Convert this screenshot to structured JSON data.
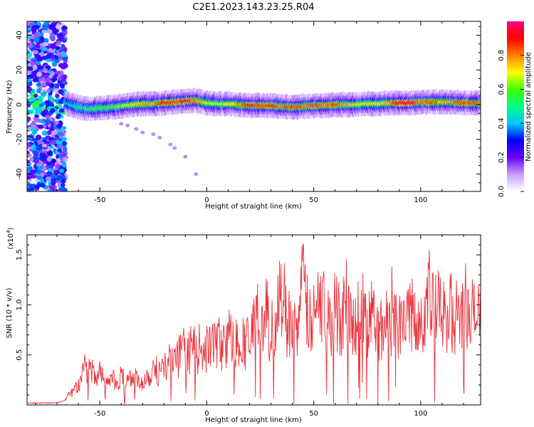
{
  "page": {
    "title": "C2E1.2023.143.23.25.R04"
  },
  "chart_data": [
    {
      "type": "heatmap",
      "xlabel": "Height of straight line (km)",
      "ylabel": "Frequency (Hz)",
      "xlim": [
        -84,
        128
      ],
      "ylim": [
        -50,
        48
      ],
      "x_ticks": [
        -50,
        0,
        50,
        100
      ],
      "y_ticks": [
        -40,
        -20,
        0,
        20,
        40
      ],
      "colorbar": {
        "label": "Normalized spectral amplitude",
        "range": [
          0.0,
          1.0
        ],
        "ticks": [
          0.0,
          0.2,
          0.4,
          0.6,
          0.8
        ],
        "colors": [
          "#ffffff",
          "#c8a0ff",
          "#6a00ff",
          "#0000ff",
          "#00c8ff",
          "#00ff80",
          "#40ff00",
          "#ffff00",
          "#ff8000",
          "#ff0000",
          "#ff0080"
        ]
      },
      "ridge": {
        "x": [
          -66,
          -60,
          -55,
          -50,
          -45,
          -40,
          -35,
          -30,
          -25,
          -20,
          -15,
          -10,
          -5,
          0,
          5,
          10,
          15,
          20,
          25,
          30,
          35,
          40,
          45,
          50,
          55,
          60,
          65,
          70,
          75,
          80,
          85,
          90,
          95,
          100,
          105,
          110,
          115,
          120,
          125,
          128
        ],
        "y": [
          1,
          -1.5,
          -2.5,
          -2,
          -1.5,
          -1,
          0,
          0.5,
          0.5,
          1,
          1.5,
          2,
          2.5,
          1,
          0.5,
          0.5,
          0,
          -0.5,
          -0.5,
          -0.5,
          -1,
          -1.5,
          -1,
          -0.5,
          -0.5,
          0,
          0,
          0,
          0.5,
          0.5,
          1,
          1,
          1,
          1.5,
          1.5,
          1.5,
          1.5,
          1,
          1,
          1
        ],
        "amplitude": [
          0.45,
          0.5,
          0.55,
          0.6,
          0.6,
          0.65,
          0.7,
          0.75,
          0.75,
          0.9,
          0.85,
          0.9,
          0.8,
          0.7,
          0.65,
          0.7,
          0.75,
          0.9,
          0.85,
          0.9,
          0.8,
          0.85,
          0.8,
          0.85,
          0.8,
          0.85,
          0.75,
          0.7,
          0.7,
          0.7,
          0.75,
          0.95,
          0.95,
          0.8,
          0.85,
          0.75,
          0.8,
          0.85,
          0.85,
          0.8
        ]
      },
      "noise_band_x": [
        -84,
        -66
      ],
      "streak": {
        "x": [
          -40,
          -37,
          -33,
          -30,
          -25,
          -22,
          -17,
          -15,
          -10,
          -5
        ],
        "y": [
          -11,
          -12,
          -14,
          -16,
          -17,
          -19,
          -23,
          -25,
          -30,
          -40
        ]
      }
    },
    {
      "type": "line",
      "xlabel": "Height of straight line (km)",
      "ylabel": "SNR (10 * v/v)",
      "y_multiplier_label": "(x10",
      "y_multiplier_exp": "4",
      "y_multiplier_close": ")",
      "xlim": [
        -84,
        128
      ],
      "ylim": [
        0,
        1.7
      ],
      "x_ticks": [
        -50,
        0,
        50,
        100
      ],
      "y_ticks": [
        0.5,
        1.0,
        1.5
      ],
      "series": [
        {
          "color": "#e8343c",
          "x": [
            -84,
            -78,
            -72,
            -68,
            -66,
            -63,
            -60,
            -57,
            -55,
            -52,
            -50,
            -47,
            -45,
            -42,
            -40,
            -37,
            -35,
            -32,
            -30,
            -27,
            -25,
            -22,
            -20,
            -17,
            -15,
            -12,
            -10,
            -7,
            -5,
            -2,
            0,
            3,
            5,
            8,
            10,
            13,
            15,
            18,
            20,
            22,
            23,
            25,
            28,
            30,
            32,
            35,
            38,
            40,
            43,
            45,
            48,
            50,
            53,
            55,
            58,
            60,
            63,
            65,
            68,
            70,
            73,
            75,
            78,
            80,
            83,
            85,
            88,
            90,
            93,
            95,
            98,
            100,
            102,
            104,
            106,
            108,
            110,
            112,
            115,
            117,
            120,
            122,
            125,
            128
          ],
          "values": [
            0.02,
            0.02,
            0.02,
            0.03,
            0.05,
            0.13,
            0.2,
            0.35,
            0.38,
            0.25,
            0.3,
            0.22,
            0.31,
            0.18,
            0.28,
            0.24,
            0.3,
            0.22,
            0.25,
            0.3,
            0.37,
            0.33,
            0.38,
            0.45,
            0.4,
            0.52,
            0.47,
            0.58,
            0.52,
            0.6,
            0.55,
            0.62,
            0.63,
            0.58,
            0.7,
            0.6,
            0.66,
            0.62,
            0.65,
            0.75,
            1.0,
            0.75,
            0.9,
            0.7,
            0.85,
            1.15,
            0.8,
            0.95,
            0.7,
            1.25,
            0.8,
            0.85,
            1.05,
            0.95,
            0.8,
            0.95,
            0.85,
            1.1,
            0.75,
            0.9,
            0.95,
            0.8,
            0.9,
            0.7,
            0.78,
            0.9,
            0.85,
            0.8,
            1.0,
            0.85,
            0.95,
            0.9,
            0.85,
            1.1,
            0.9,
            0.95,
            0.9,
            0.85,
            0.95,
            0.88,
            0.92,
            0.85,
            0.9,
            0.85
          ]
        }
      ]
    }
  ]
}
